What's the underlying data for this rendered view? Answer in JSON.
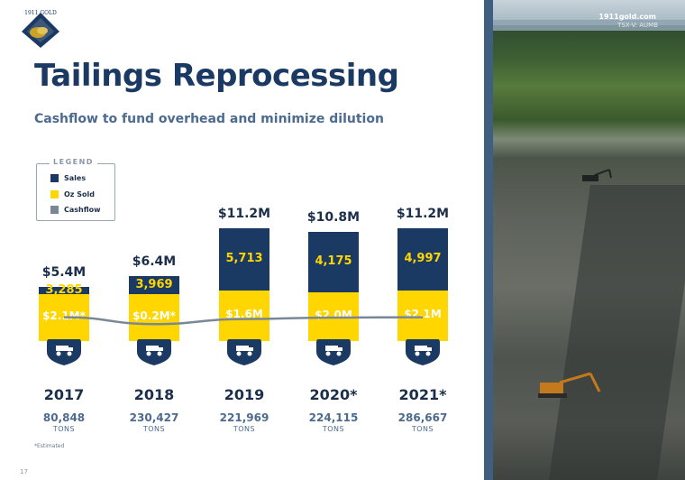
{
  "slide": {
    "title": "Tailings Reprocessing",
    "subtitle": "Cashflow to fund overhead and minimize dilution",
    "footnote": "*Estimated",
    "page_number": "17",
    "logo_text": "1911 GOLD"
  },
  "legend": {
    "title": "LEGEND",
    "items": [
      {
        "label": "Sales",
        "color": "#1b3a63"
      },
      {
        "label": "Oz Sold",
        "color": "#ffd600"
      },
      {
        "label": "Cashflow",
        "color": "#7a8797"
      }
    ]
  },
  "photo": {
    "site": "1911gold.com",
    "ticker": "TSX-V: AUMB"
  },
  "chart_data": {
    "type": "bar",
    "categories": [
      "2017",
      "2018",
      "2019",
      "2020*",
      "2021*"
    ],
    "series": [
      {
        "name": "Sales",
        "values": [
          "$5.4M",
          "$6.4M",
          "$11.2M",
          "$10.8M",
          "$11.2M"
        ]
      },
      {
        "name": "Oz Sold",
        "values": [
          "3,285",
          "3,969",
          "5,713",
          "4,175",
          "4,997"
        ]
      },
      {
        "name": "Cashflow",
        "values": [
          "$2.1M*",
          "$0.2M*",
          "$1.6M",
          "$2.0M",
          "$2.1M"
        ]
      }
    ],
    "sales_musd": [
      5.4,
      6.4,
      11.2,
      10.8,
      11.2
    ],
    "oz_sold": [
      3285,
      3969,
      5713,
      4175,
      4997
    ],
    "cashflow_musd": [
      2.1,
      0.2,
      1.6,
      2.0,
      2.1
    ],
    "tons": [
      "80,848",
      "230,427",
      "221,969",
      "224,115",
      "286,667"
    ],
    "tons_label": "TONS",
    "colors": {
      "sales": "#1b3a63",
      "oz_sold": "#ffd600",
      "cashflow": "#7a8797"
    }
  }
}
